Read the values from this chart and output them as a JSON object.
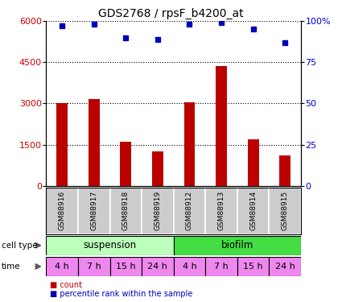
{
  "title": "GDS2768 / rpsF_b4200_at",
  "samples": [
    "GSM88916",
    "GSM88917",
    "GSM88918",
    "GSM88919",
    "GSM88912",
    "GSM88913",
    "GSM88914",
    "GSM88915"
  ],
  "counts": [
    3000,
    3150,
    1600,
    1250,
    3050,
    4350,
    1700,
    1100
  ],
  "percentile_ranks": [
    97,
    98,
    90,
    89,
    98,
    99,
    95,
    87
  ],
  "ylim_left": [
    0,
    6000
  ],
  "ylim_right": [
    0,
    100
  ],
  "yticks_left": [
    0,
    1500,
    3000,
    4500,
    6000
  ],
  "yticks_right": [
    0,
    25,
    50,
    75,
    100
  ],
  "bar_color": "#bb0000",
  "point_color": "#0000bb",
  "cell_type_data": [
    {
      "label": "suspension",
      "start": 0,
      "end": 4,
      "color": "#bbffbb"
    },
    {
      "label": "biofilm",
      "start": 4,
      "end": 8,
      "color": "#44dd44"
    }
  ],
  "times": [
    "4 h",
    "7 h",
    "15 h",
    "24 h",
    "4 h",
    "7 h",
    "15 h",
    "24 h"
  ],
  "time_color": "#ee88ee",
  "sample_bg": "#cccccc",
  "label_cell_type": "cell type",
  "label_time": "time",
  "legend_count": "count",
  "legend_percentile": "percentile rank within the sample",
  "axis_color_left": "#cc0000",
  "axis_color_right": "#0000cc",
  "title_fontsize": 10,
  "tick_fontsize": 8,
  "bar_width": 0.35
}
